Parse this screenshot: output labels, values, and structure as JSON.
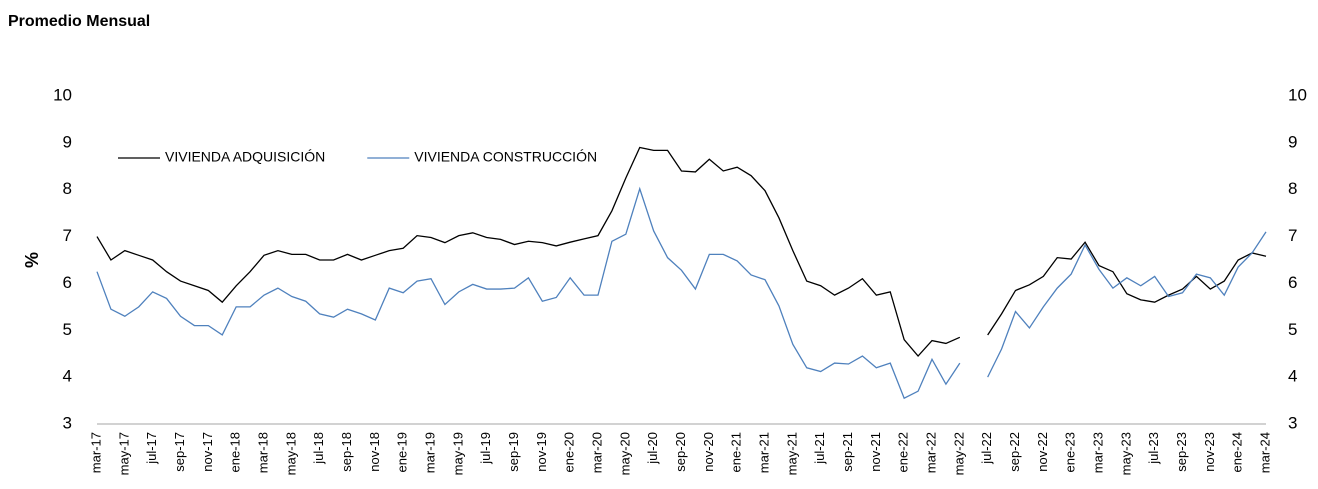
{
  "chart_data": {
    "type": "line",
    "subtitle": "Promedio Mensual",
    "y_label": "%",
    "categories": [
      "mar-17",
      null,
      "may-17",
      null,
      "jul-17",
      null,
      "sep-17",
      null,
      "nov-17",
      null,
      "ene-18",
      null,
      "mar-18",
      null,
      "may-18",
      null,
      "jul-18",
      null,
      "sep-18",
      null,
      "nov-18",
      null,
      "ene-19",
      null,
      "mar-19",
      null,
      "may-19",
      null,
      "jul-19",
      null,
      "sep-19",
      null,
      "nov-19",
      null,
      "ene-20",
      null,
      "mar-20",
      null,
      "may-20",
      null,
      "jul-20",
      null,
      "sep-20",
      null,
      "nov-20",
      null,
      "ene-21",
      null,
      "mar-21",
      null,
      "may-21",
      null,
      "jul-21",
      null,
      "sep-21",
      null,
      "nov-21",
      null,
      "ene-22",
      null,
      "mar-22",
      null,
      "may-22",
      null,
      "jul-22",
      null,
      "sep-22",
      null,
      "nov-22",
      null,
      "ene-23",
      null,
      "mar-23",
      null,
      "may-23",
      null,
      "jul-23",
      null,
      "sep-23",
      null,
      "nov-23",
      null,
      "ene-24",
      null,
      "mar-24"
    ],
    "series": [
      {
        "name": "VIVIENDA ADQUISICIÓN",
        "color": "#000000",
        "values": [
          7.0,
          6.5,
          6.7,
          6.6,
          6.5,
          6.25,
          6.05,
          5.95,
          5.85,
          5.6,
          5.95,
          6.25,
          6.6,
          6.7,
          6.62,
          6.62,
          6.5,
          6.5,
          6.62,
          6.5,
          6.6,
          6.7,
          6.75,
          7.02,
          6.98,
          6.87,
          7.02,
          7.08,
          6.98,
          6.94,
          6.83,
          6.9,
          6.87,
          6.8,
          6.88,
          6.95,
          7.02,
          7.55,
          8.25,
          8.9,
          8.84,
          8.84,
          8.4,
          8.38,
          8.65,
          8.4,
          8.48,
          8.3,
          7.98,
          7.4,
          6.7,
          6.05,
          5.95,
          5.75,
          5.9,
          6.1,
          5.75,
          5.82,
          4.8,
          4.45,
          4.78,
          4.72,
          4.85,
          null,
          4.9,
          5.35,
          5.85,
          5.97,
          6.15,
          6.55,
          6.52,
          6.88,
          6.38,
          6.25,
          5.78,
          5.65,
          5.6,
          5.75,
          5.88,
          6.15,
          5.88,
          6.05,
          6.5,
          6.65,
          6.58
        ]
      },
      {
        "name": "VIVIENDA CONSTRUCCIÓN",
        "color": "#4f81bd",
        "values": [
          6.25,
          5.45,
          5.3,
          5.5,
          5.82,
          5.68,
          5.3,
          5.1,
          5.1,
          4.9,
          5.5,
          5.5,
          5.75,
          5.9,
          5.72,
          5.62,
          5.35,
          5.28,
          5.45,
          5.35,
          5.22,
          5.9,
          5.8,
          6.05,
          6.1,
          5.55,
          5.82,
          5.98,
          5.88,
          5.88,
          5.9,
          6.12,
          5.62,
          5.7,
          6.12,
          5.75,
          5.75,
          6.9,
          7.05,
          8.02,
          7.12,
          6.55,
          6.28,
          5.88,
          6.62,
          6.62,
          6.48,
          6.18,
          6.08,
          5.52,
          4.7,
          4.2,
          4.12,
          4.3,
          4.28,
          4.45,
          4.2,
          4.3,
          3.55,
          3.7,
          4.38,
          3.85,
          4.3,
          null,
          4.0,
          4.6,
          5.4,
          5.05,
          5.5,
          5.9,
          6.2,
          6.82,
          6.3,
          5.9,
          6.12,
          5.95,
          6.15,
          5.72,
          5.8,
          6.2,
          6.12,
          5.75,
          6.35,
          6.65,
          7.1
        ]
      }
    ],
    "ylim": [
      3,
      10
    ],
    "yticks": [
      3,
      4,
      5,
      6,
      7,
      8,
      9,
      10
    ],
    "y2lim": [
      3,
      10
    ],
    "y2ticks": [
      3,
      4,
      5,
      6,
      7,
      8,
      9,
      10
    ],
    "grid": false,
    "legend": "upper left"
  }
}
